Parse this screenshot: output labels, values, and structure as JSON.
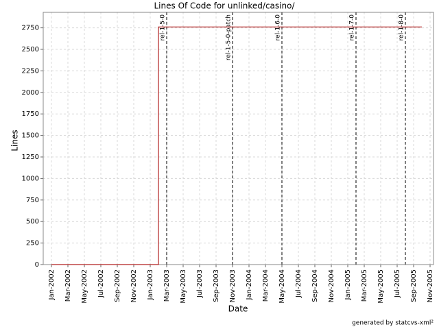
{
  "chart_data": {
    "type": "step",
    "title": "Lines Of Code for unlinked/casino/",
    "x_label": "Date",
    "y_label": "Lines",
    "footer": "generated by statcvs-xml²",
    "x": [
      "2002-01",
      "2003-02",
      "2005-10"
    ],
    "values": [
      0,
      2760,
      2760
    ],
    "color": "#b22222",
    "xlim": [
      "2001-12",
      "2005-11"
    ],
    "xticks": [
      {
        "value": "2002-01",
        "label": "Jan-2002"
      },
      {
        "value": "2002-03",
        "label": "Mar-2002"
      },
      {
        "value": "2002-05",
        "label": "May-2002"
      },
      {
        "value": "2002-07",
        "label": "Jul-2002"
      },
      {
        "value": "2002-09",
        "label": "Sep-2002"
      },
      {
        "value": "2002-11",
        "label": "Nov-2002"
      },
      {
        "value": "2003-01",
        "label": "Jan-2003"
      },
      {
        "value": "2003-03",
        "label": "Mar-2003"
      },
      {
        "value": "2003-05",
        "label": "May-2003"
      },
      {
        "value": "2003-07",
        "label": "Jul-2003"
      },
      {
        "value": "2003-09",
        "label": "Sep-2003"
      },
      {
        "value": "2003-11",
        "label": "Nov-2003"
      },
      {
        "value": "2004-01",
        "label": "Jan-2004"
      },
      {
        "value": "2004-03",
        "label": "Mar-2004"
      },
      {
        "value": "2004-05",
        "label": "May-2004"
      },
      {
        "value": "2004-07",
        "label": "Jul-2004"
      },
      {
        "value": "2004-09",
        "label": "Sep-2004"
      },
      {
        "value": "2004-11",
        "label": "Nov-2004"
      },
      {
        "value": "2005-01",
        "label": "Jan-2005"
      },
      {
        "value": "2005-03",
        "label": "Mar-2005"
      },
      {
        "value": "2005-05",
        "label": "May-2005"
      },
      {
        "value": "2005-07",
        "label": "Jul-2005"
      },
      {
        "value": "2005-09",
        "label": "Sep-2005"
      },
      {
        "value": "2005-11",
        "label": "Nov-2005"
      }
    ],
    "ylim": [
      0,
      2930
    ],
    "yticks": [
      0,
      250,
      500,
      750,
      1000,
      1250,
      1500,
      1750,
      2000,
      2250,
      2500,
      2750
    ],
    "grid": true,
    "markers": [
      {
        "x": "2003-03",
        "label": "rel-1-5-0"
      },
      {
        "x": "2003-11",
        "label": "rel-1-5-0-patch"
      },
      {
        "x": "2004-05",
        "label": "rel-1-6-0"
      },
      {
        "x": "2005-02",
        "label": "rel-1-7-0"
      },
      {
        "x": "2005-08",
        "label": "rel-1-8-0"
      }
    ]
  }
}
